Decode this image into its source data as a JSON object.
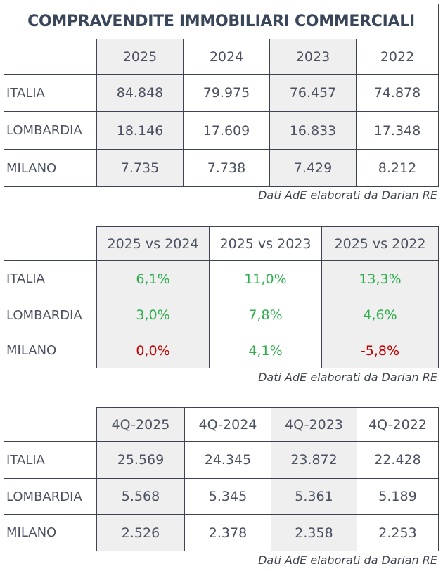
{
  "table1": {
    "title": "COMPRAVENDITE IMMOBILIARI COMMERCIALI",
    "columns": [
      "2025",
      "2024",
      "2023",
      "2022"
    ],
    "rows": [
      {
        "label": "ITALIA",
        "values": [
          "84.848",
          "79.975",
          "76.457",
          "74.878"
        ]
      },
      {
        "label": "LOMBARDIA",
        "values": [
          "18.146",
          "17.609",
          "16.833",
          "17.348"
        ]
      },
      {
        "label": "MILANO",
        "values": [
          "7.735",
          "7.738",
          "7.429",
          "8.212"
        ]
      }
    ],
    "source": "Dati AdE elaborati da Darian RE"
  },
  "table2": {
    "columns": [
      "2025 vs 2024",
      "2025 vs 2023",
      "2025 vs 2022"
    ],
    "rows": [
      {
        "label": "ITALIA",
        "values": [
          "6,1%",
          "11,0%",
          "13,3%"
        ],
        "colors": [
          "#2fae4e",
          "#2fae4e",
          "#2fae4e"
        ]
      },
      {
        "label": "LOMBARDIA",
        "values": [
          "3,0%",
          "7,8%",
          "4,6%"
        ],
        "colors": [
          "#2fae4e",
          "#2fae4e",
          "#2fae4e"
        ]
      },
      {
        "label": "MILANO",
        "values": [
          "0,0%",
          "4,1%",
          "-5,8%"
        ],
        "colors": [
          "#c00000",
          "#2fae4e",
          "#c00000"
        ]
      }
    ],
    "source": "Dati AdE elaborati da Darian RE"
  },
  "table3": {
    "columns": [
      "4Q-2025",
      "4Q-2024",
      "4Q-2023",
      "4Q-2022"
    ],
    "rows": [
      {
        "label": "ITALIA",
        "values": [
          "25.569",
          "24.345",
          "23.872",
          "22.428"
        ]
      },
      {
        "label": "LOMBARDIA",
        "values": [
          "5.568",
          "5.345",
          "5.361",
          "5.189"
        ]
      },
      {
        "label": "MILANO",
        "values": [
          "2.526",
          "2.378",
          "2.358",
          "2.253"
        ]
      }
    ],
    "source": "Dati AdE elaborati da Darian RE"
  }
}
